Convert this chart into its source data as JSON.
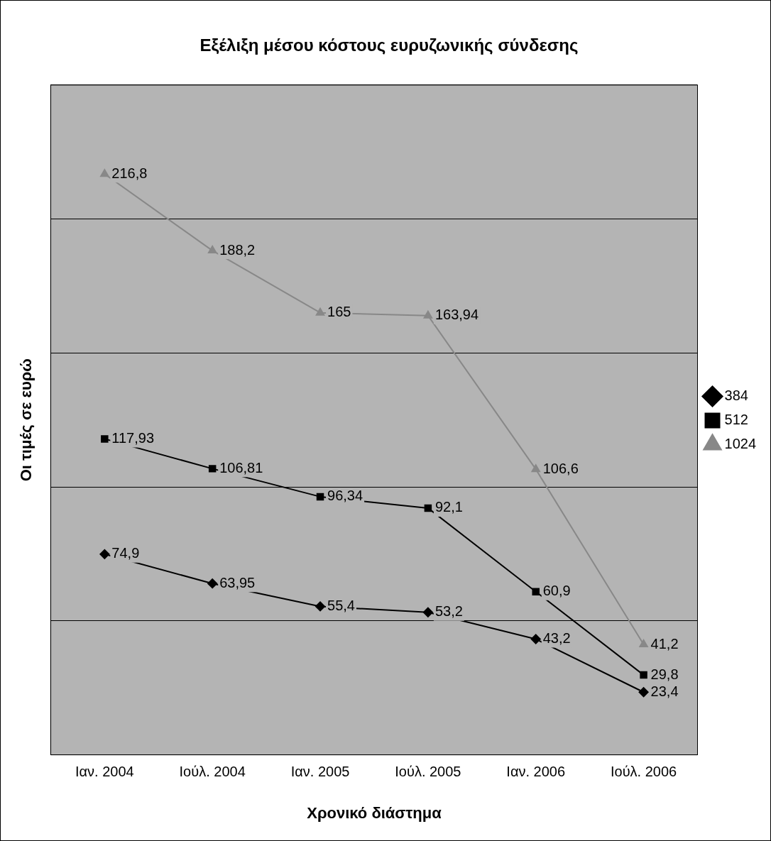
{
  "chart_data": {
    "type": "line",
    "title": "Εξέλιξη μέσου κόστους ευρυζωνικής σύνδεσης",
    "xlabel": "Χρονικό διάστημα",
    "ylabel": "Οι τιμές σε ευρώ",
    "categories": [
      "Ιαν. 2004",
      "Ιούλ. 2004",
      "Ιαν. 2005",
      "Ιούλ. 2005",
      "Ιαν. 2006",
      "Ιούλ. 2006"
    ],
    "series": [
      {
        "name": "384",
        "color": "#000000",
        "marker": "diamond",
        "values": [
          74.9,
          63.95,
          55.4,
          53.2,
          43.2,
          23.4
        ],
        "value_labels": [
          "74,9",
          "63,95",
          "55,4",
          "53,2",
          "43,2",
          "23,4"
        ]
      },
      {
        "name": "512",
        "color": "#000000",
        "marker": "square",
        "values": [
          117.93,
          106.81,
          96.34,
          92.1,
          60.9,
          29.8
        ],
        "value_labels": [
          "117,93",
          "106,81",
          "96,34",
          "92,1",
          "60,9",
          "29,8"
        ]
      },
      {
        "name": "1024",
        "color": "#888888",
        "marker": "triangle",
        "values": [
          216.8,
          188.2,
          165,
          163.94,
          106.6,
          41.2
        ],
        "value_labels": [
          "216,8",
          "188,2",
          "165",
          "163,94",
          "106,6",
          "41,2"
        ]
      }
    ],
    "ylim": [
      0,
      250
    ],
    "yticks": [
      {
        "value": 0,
        "label": null
      },
      {
        "value": 50,
        "label": null
      },
      {
        "value": 100,
        "label": null
      },
      {
        "value": 150,
        "label": null
      },
      {
        "value": 200,
        "label": null
      },
      {
        "value": 250,
        "label": null
      }
    ],
    "grid": "y",
    "legend": "right",
    "tick_labels": "x",
    "line_style": "solid"
  }
}
